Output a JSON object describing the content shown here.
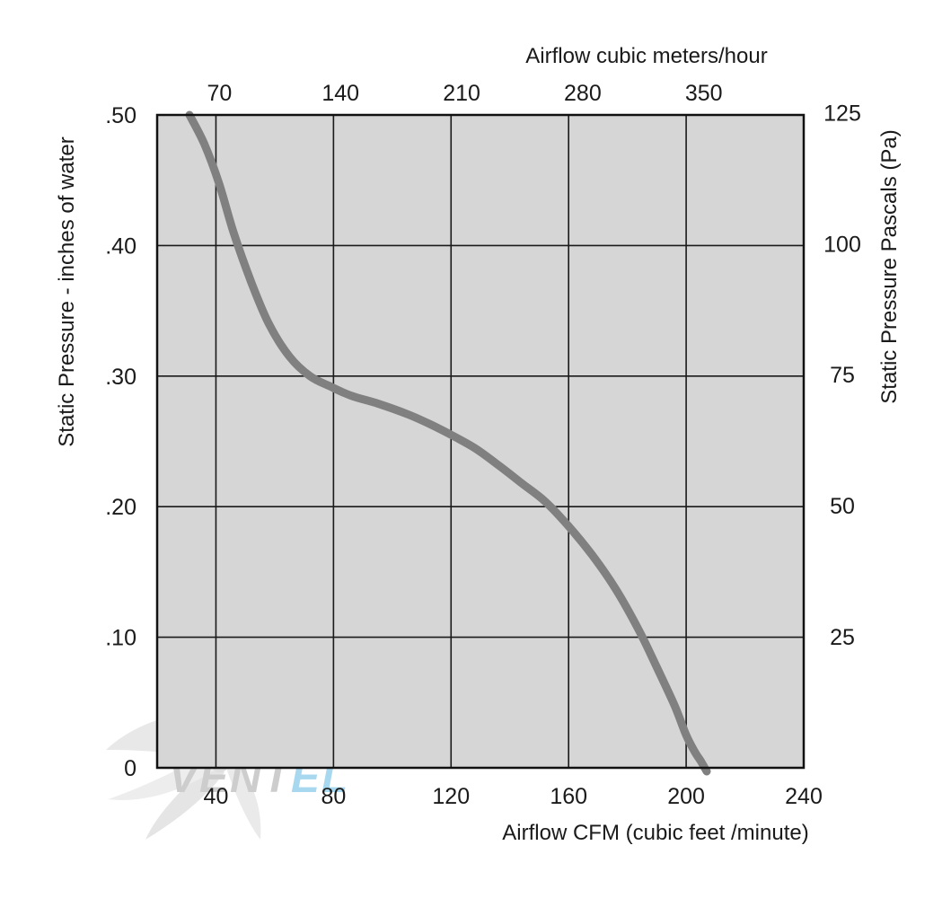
{
  "chart_data": {
    "type": "line",
    "title": "",
    "xlabel": "Airflow  CFM (cubic feet /minute)",
    "x2label": "Airflow cubic meters/hour",
    "ylabel": "Static Pressure - inches of water",
    "y2label": "Static Pressure Pascals (Pa)",
    "xlim": [
      20,
      240
    ],
    "ylim": [
      0,
      0.5
    ],
    "x_ticks": [
      40,
      80,
      120,
      160,
      200,
      240
    ],
    "x_tick_labels": [
      "40",
      "80",
      "120",
      "160",
      "200",
      "240"
    ],
    "x2_ticks": [
      70,
      140,
      210,
      280,
      350
    ],
    "x2_tick_labels": [
      "70",
      "140",
      "210",
      "280",
      "350"
    ],
    "y_ticks": [
      0,
      0.1,
      0.2,
      0.3,
      0.4,
      0.5
    ],
    "y_tick_labels": [
      "0",
      ".10",
      ".20",
      ".30",
      ".40",
      ".50"
    ],
    "y2_ticks": [
      25,
      50,
      75,
      100,
      125
    ],
    "y2_tick_labels": [
      "25",
      "50",
      "75",
      "100",
      "125"
    ],
    "grid": true,
    "plot_background": "#d6d6d6",
    "series": [
      {
        "name": "",
        "color": "#808080",
        "x": [
          31,
          36,
          41,
          46,
          52,
          58,
          65,
          72,
          79,
          86,
          95,
          105,
          113,
          120,
          128,
          136,
          144,
          152,
          160,
          168,
          176,
          184,
          190,
          196,
          200,
          203,
          205,
          207
        ],
        "y": [
          0.5,
          0.478,
          0.448,
          0.41,
          0.372,
          0.34,
          0.315,
          0.3,
          0.292,
          0.285,
          0.279,
          0.271,
          0.263,
          0.255,
          0.245,
          0.232,
          0.218,
          0.204,
          0.185,
          0.163,
          0.137,
          0.105,
          0.077,
          0.048,
          0.025,
          0.012,
          0.005,
          -0.005
        ]
      }
    ]
  },
  "watermark": {
    "text": "VENTEL",
    "color_main": "#c8c8c8",
    "color_accent": "#9fd4ee"
  }
}
